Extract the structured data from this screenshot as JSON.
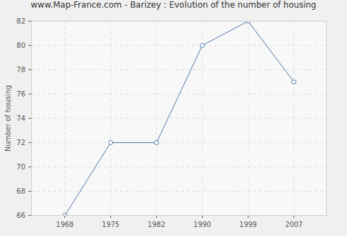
{
  "chart_data": {
    "type": "line",
    "title": "www.Map-France.com - Barizey : Evolution of the number of housing",
    "y_label": "Number of housing",
    "categories": [
      "1968",
      "1975",
      "1982",
      "1990",
      "1999",
      "2007"
    ],
    "values": [
      66,
      72,
      72,
      80,
      82,
      77
    ],
    "color": "#4a76a8",
    "marker": "circle",
    "ylim": [
      66,
      82
    ],
    "yticks": [
      66,
      68,
      70,
      72,
      74,
      76,
      78,
      80,
      82
    ],
    "grid": true
  }
}
